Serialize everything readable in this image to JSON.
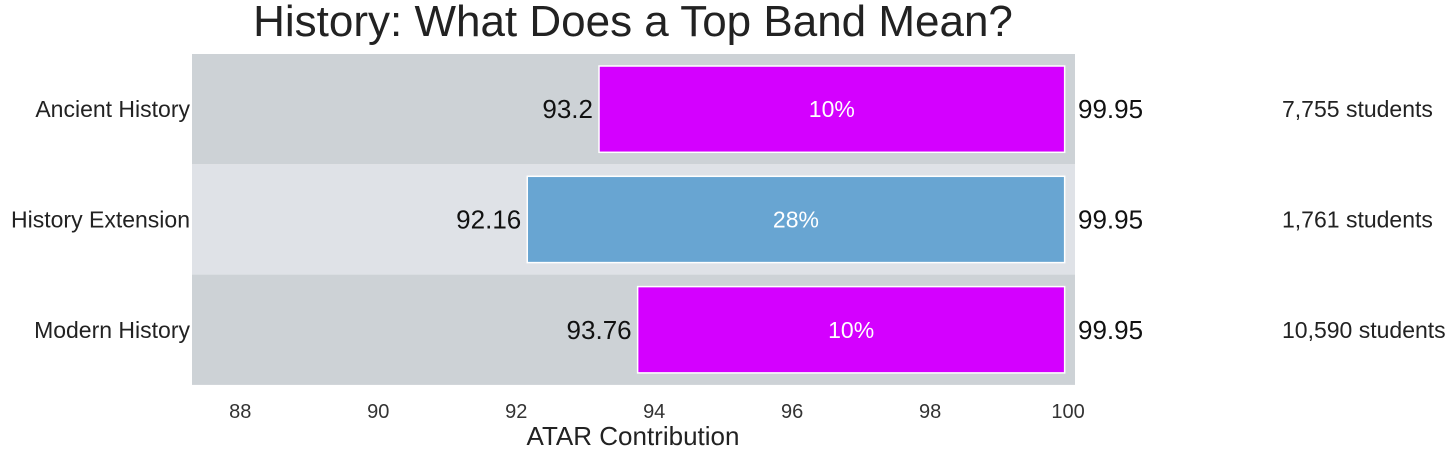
{
  "chart_data": {
    "type": "bar",
    "orientation": "horizontal-range",
    "title": "History: What Does a Top Band Mean?",
    "xlabel": "ATAR Contribution",
    "ylabel": "",
    "xlim": [
      87.3,
      100.1
    ],
    "xticks": [
      "88",
      "90",
      "92",
      "94",
      "96",
      "98",
      "100"
    ],
    "xtick_values": [
      88,
      90,
      92,
      94,
      96,
      98,
      100
    ],
    "grid": false,
    "categories": [
      {
        "name": "Ancient History",
        "start": 93.2,
        "end": 99.95,
        "start_label": "93.2",
        "end_label": "99.95",
        "percent": "10%",
        "students": "7,755 students",
        "color": "#d400ff"
      },
      {
        "name": "History Extension",
        "start": 92.16,
        "end": 99.95,
        "start_label": "92.16",
        "end_label": "99.95",
        "percent": "28%",
        "students": "1,761 students",
        "color": "#68a5d2"
      },
      {
        "name": "Modern History",
        "start": 93.76,
        "end": 99.95,
        "start_label": "93.76",
        "end_label": "99.95",
        "percent": "10%",
        "students": "10,590 students",
        "color": "#d400ff"
      }
    ],
    "row_backgrounds": [
      "#cdd2d6",
      "#dfe2e7",
      "#cdd2d6"
    ]
  }
}
